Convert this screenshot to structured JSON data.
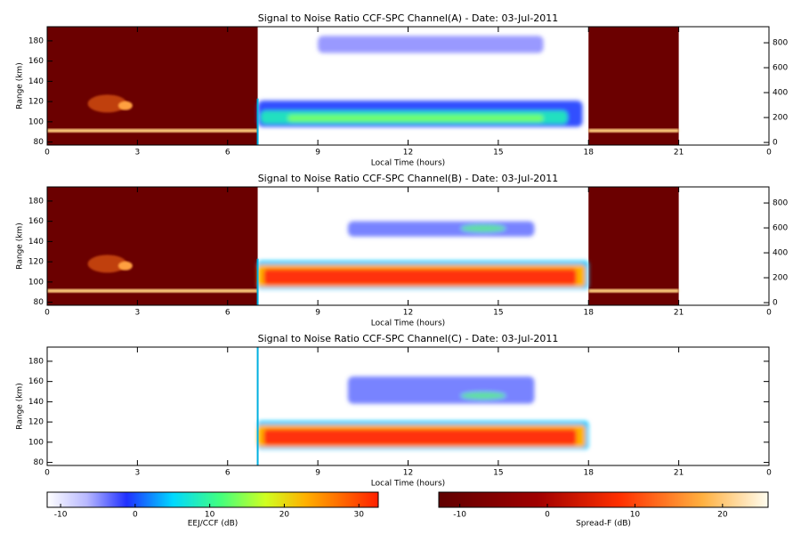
{
  "chart_data": [
    {
      "type": "heatmap",
      "title": "Signal to Noise Ratio CCF-SPC Channel(A) - Date: 03-Jul-2011",
      "x_label": "Local Time (hours)",
      "y_label": "Range (km)",
      "xlim": [
        0,
        24
      ],
      "xticks": [
        0,
        3,
        6,
        9,
        12,
        15,
        18,
        21,
        {
          "value": 24,
          "label": "0"
        }
      ],
      "ylim": [
        77,
        194
      ],
      "yticks": [
        80,
        100,
        120,
        140,
        160,
        180
      ],
      "y2lim": [
        -21,
        929
      ],
      "y2ticks": [
        0,
        200,
        400,
        600,
        800
      ]
    },
    {
      "type": "heatmap",
      "title": "Signal to Noise Ratio CCF-SPC Channel(B) - Date: 03-Jul-2011",
      "x_label": "Local Time (hours)",
      "y_label": "Range (km)",
      "xlim": [
        0,
        24
      ],
      "xticks": [
        0,
        3,
        6,
        9,
        12,
        15,
        18,
        21,
        {
          "value": 24,
          "label": "0"
        }
      ],
      "ylim": [
        77,
        194
      ],
      "yticks": [
        80,
        100,
        120,
        140,
        160,
        180
      ],
      "y2lim": [
        -21,
        929
      ],
      "y2ticks": [
        0,
        200,
        400,
        600,
        800
      ]
    },
    {
      "type": "heatmap",
      "title": "Signal to Noise Ratio CCF-SPC Channel(C) - Date: 03-Jul-2011",
      "x_label": "Local Time (hours)",
      "y_label": "Range (km)",
      "xlim": [
        0,
        24
      ],
      "xticks": [
        0,
        3,
        6,
        9,
        12,
        15,
        18,
        21,
        {
          "value": 24,
          "label": "0"
        }
      ],
      "ylim": [
        77,
        194
      ],
      "yticks": [
        80,
        100,
        120,
        140,
        160,
        180
      ]
    }
  ],
  "colorbars": [
    {
      "label": "EEJ/CCF (dB)",
      "lim": [
        -11.8,
        32.6
      ],
      "ticks": [
        -10,
        0,
        10,
        20,
        30
      ]
    },
    {
      "label": "Spread-F (dB)",
      "lim": [
        -12.4,
        25.2
      ],
      "ticks": [
        -10,
        0,
        10,
        20
      ]
    }
  ]
}
